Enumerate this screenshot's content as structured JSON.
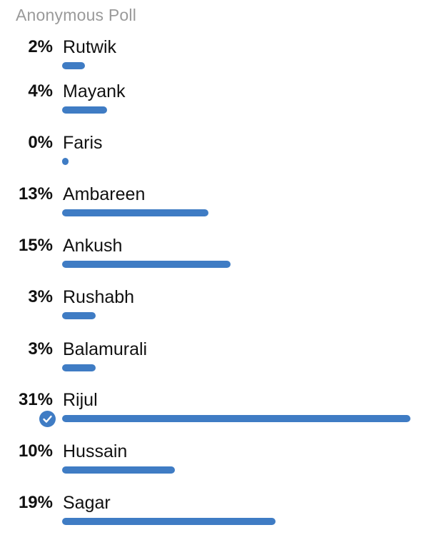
{
  "poll": {
    "title": "Anonymous Poll",
    "accent_color": "#3f7cc4",
    "options": [
      {
        "percent_label": "2%",
        "name": "Rutwik",
        "fraction_of_max": 0.065,
        "selected": false
      },
      {
        "percent_label": "4%",
        "name": "Mayank",
        "fraction_of_max": 0.13,
        "selected": false
      },
      {
        "percent_label": "0%",
        "name": "Faris",
        "fraction_of_max": 0.0,
        "selected": false
      },
      {
        "percent_label": "13%",
        "name": "Ambareen",
        "fraction_of_max": 0.42,
        "selected": false
      },
      {
        "percent_label": "15%",
        "name": "Ankush",
        "fraction_of_max": 0.484,
        "selected": false
      },
      {
        "percent_label": "3%",
        "name": "Rushabh",
        "fraction_of_max": 0.097,
        "selected": false
      },
      {
        "percent_label": "3%",
        "name": "Balamurali",
        "fraction_of_max": 0.097,
        "selected": false
      },
      {
        "percent_label": "31%",
        "name": "Rijul",
        "fraction_of_max": 1.0,
        "selected": true
      },
      {
        "percent_label": "10%",
        "name": "Hussain",
        "fraction_of_max": 0.323,
        "selected": false
      },
      {
        "percent_label": "19%",
        "name": "Sagar",
        "fraction_of_max": 0.613,
        "selected": false
      }
    ]
  }
}
